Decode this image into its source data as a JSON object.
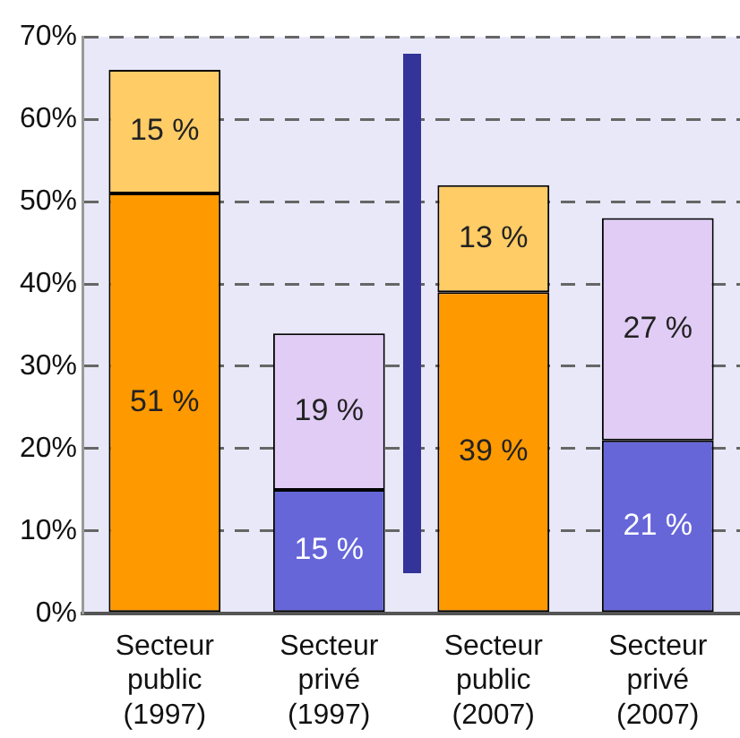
{
  "chart_data": {
    "type": "bar",
    "stacked": true,
    "categories": [
      "Secteur public (1997)",
      "Secteur privé (1997)",
      "Secteur public (2007)",
      "Secteur privé (2007)"
    ],
    "series": [
      {
        "colors": [
          "#ff9900",
          "#6666d9",
          "#ff9900",
          "#6666d9"
        ],
        "values": [
          51,
          15,
          39,
          21
        ],
        "value_labels": [
          "51 %",
          "15 %",
          "39 %",
          "21 %"
        ]
      },
      {
        "colors": [
          "#ffcc66",
          "#e0ccf5",
          "#ffcc66",
          "#e0ccf5"
        ],
        "values": [
          15,
          19,
          13,
          27
        ],
        "value_labels": [
          "15 %",
          "19 %",
          "13 %",
          "27 %"
        ]
      }
    ],
    "ylim": [
      0,
      70
    ],
    "yticks": [
      {
        "value": 0,
        "label": "0%"
      },
      {
        "value": 10,
        "label": "10%"
      },
      {
        "value": 20,
        "label": "20%"
      },
      {
        "value": 30,
        "label": "30%"
      },
      {
        "value": 40,
        "label": "40%"
      },
      {
        "value": 50,
        "label": "50%"
      },
      {
        "value": 60,
        "label": "60%"
      },
      {
        "value": 70,
        "label": "70%"
      }
    ],
    "grid": "y",
    "legend": false
  }
}
